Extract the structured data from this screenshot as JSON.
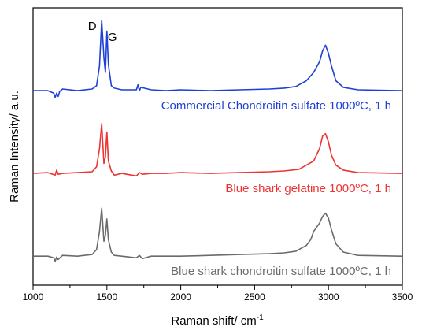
{
  "chart_data": {
    "type": "line",
    "xlabel": "Raman shift/ cm",
    "xlabel_sup": "-1",
    "ylabel": "Raman Intensity/ a.u.",
    "xlim": [
      1000,
      3500
    ],
    "xticks": [
      1000,
      1500,
      2000,
      2500,
      3000,
      3500
    ],
    "y_ticks_shown": false,
    "grid": false,
    "annotations": [
      {
        "text": "D",
        "x": 1465
      },
      {
        "text": "G",
        "x": 1505
      }
    ],
    "series": [
      {
        "name": "Commercial Chondroitin sulfate 1000ºC, 1 h",
        "color": "#1f3fd6",
        "baseline": 2.0,
        "x": [
          1000,
          1100,
          1140,
          1150,
          1160,
          1170,
          1180,
          1200,
          1300,
          1400,
          1430,
          1450,
          1465,
          1480,
          1490,
          1500,
          1510,
          1530,
          1550,
          1600,
          1700,
          1710,
          1720,
          1730,
          1800,
          1900,
          2000,
          2200,
          2400,
          2600,
          2700,
          2780,
          2850,
          2900,
          2940,
          2960,
          2980,
          3000,
          3020,
          3050,
          3100,
          3200,
          3500
        ],
        "y": [
          2.0,
          2.0,
          1.97,
          1.92,
          1.97,
          1.93,
          1.99,
          2.02,
          2.0,
          2.02,
          2.06,
          2.3,
          2.85,
          2.4,
          2.22,
          2.72,
          2.32,
          2.06,
          2.03,
          2.01,
          2.01,
          2.07,
          2.0,
          2.04,
          2.01,
          2.0,
          2.01,
          2.0,
          2.01,
          2.02,
          2.03,
          2.05,
          2.12,
          2.22,
          2.35,
          2.48,
          2.55,
          2.45,
          2.3,
          2.12,
          2.04,
          2.01,
          2.0
        ]
      },
      {
        "name": "Blue shark gelatine 1000ºC, 1 h",
        "color": "#ee3333",
        "baseline": 1.0,
        "x": [
          1000,
          1100,
          1150,
          1160,
          1170,
          1200,
          1300,
          1400,
          1430,
          1450,
          1465,
          1480,
          1490,
          1500,
          1510,
          1530,
          1550,
          1600,
          1700,
          1720,
          1740,
          1800,
          1900,
          2000,
          2200,
          2400,
          2600,
          2700,
          2800,
          2900,
          2940,
          2960,
          2980,
          3000,
          3020,
          3050,
          3100,
          3200,
          3500
        ],
        "y": [
          1.0,
          1.01,
          0.98,
          1.04,
          0.99,
          1.0,
          1.01,
          1.02,
          1.08,
          1.3,
          1.6,
          1.12,
          1.2,
          1.5,
          1.15,
          1.03,
          0.98,
          1.0,
          0.97,
          1.01,
          0.99,
          1.0,
          1.0,
          1.01,
          1.0,
          1.01,
          1.02,
          1.03,
          1.05,
          1.15,
          1.3,
          1.45,
          1.48,
          1.38,
          1.22,
          1.1,
          1.04,
          1.01,
          1.0
        ]
      },
      {
        "name": "Blue shark chondroitin sulfate 1000ºC, 1 h",
        "color": "#6b6b6b",
        "baseline": 0.0,
        "x": [
          1000,
          1100,
          1140,
          1150,
          1160,
          1170,
          1200,
          1300,
          1400,
          1430,
          1450,
          1465,
          1480,
          1490,
          1500,
          1510,
          1530,
          1550,
          1600,
          1700,
          1720,
          1740,
          1800,
          1900,
          2000,
          2200,
          2400,
          2600,
          2700,
          2780,
          2850,
          2880,
          2900,
          2920,
          2940,
          2960,
          2980,
          3000,
          3020,
          3050,
          3100,
          3200,
          3500
        ],
        "y": [
          0.0,
          0.0,
          -0.02,
          -0.06,
          -0.01,
          -0.04,
          0.01,
          0.0,
          0.02,
          0.08,
          0.3,
          0.58,
          0.18,
          0.25,
          0.45,
          0.2,
          0.05,
          0.01,
          0.0,
          -0.02,
          0.01,
          -0.03,
          0.0,
          0.0,
          0.0,
          0.01,
          0.02,
          0.03,
          0.04,
          0.06,
          0.13,
          0.2,
          0.3,
          0.35,
          0.4,
          0.48,
          0.52,
          0.46,
          0.32,
          0.15,
          0.05,
          0.01,
          0.0
        ]
      }
    ]
  }
}
